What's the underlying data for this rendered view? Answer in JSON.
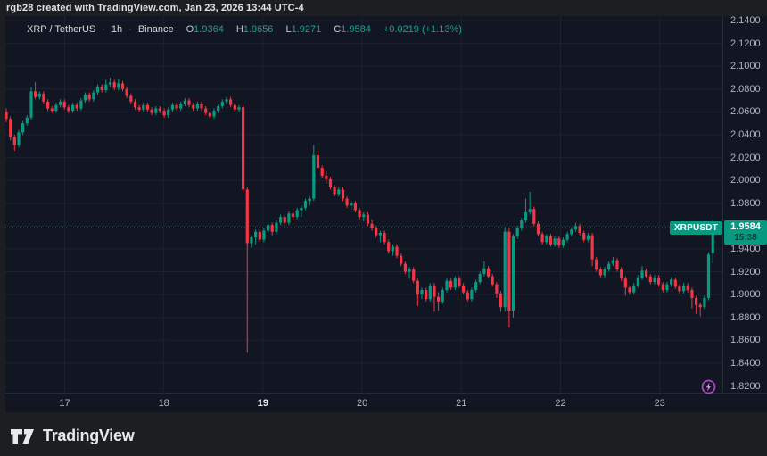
{
  "attribution": "rgb28 created with TradingView.com, Jan 23, 2026 13:44 UTC-4",
  "legend": {
    "symbol": "XRP / TetherUS",
    "separator": "·",
    "interval": "1h",
    "exchange": "Binance",
    "open_label": "O",
    "open": "1.9364",
    "high_label": "H",
    "high": "1.9656",
    "low_label": "L",
    "low": "1.9271",
    "close_label": "C",
    "close": "1.9584",
    "change": "+0.0219 (+1.13%)"
  },
  "price_label": {
    "symbol": "XRPUSDT",
    "price": "1.9584",
    "countdown": "15:38"
  },
  "logo": {
    "text": "TradingView"
  },
  "colors": {
    "up": "#089981",
    "down": "#f23645",
    "price_line": "#089981",
    "badge_bg": "#089981",
    "grid": "#1d2230",
    "panel_bg": "#121623",
    "outer_bg": "#1d1e21",
    "axis_text": "#b2b5be",
    "flash": "#ab47bc"
  },
  "chart_data": {
    "type": "candlestick",
    "title": "XRP / TetherUS",
    "exchange": "Binance",
    "interval": "1h",
    "current_price": 1.9584,
    "change_abs": 0.0219,
    "change_pct": 1.13,
    "price_axis": {
      "min": 1.82,
      "max": 2.14,
      "tick_step": 0.02,
      "labels": [
        "2.1400",
        "2.1200",
        "2.1000",
        "2.0800",
        "2.0600",
        "2.0400",
        "2.0200",
        "2.0000",
        "1.9800",
        "1.9400",
        "1.9200",
        "1.9000",
        "1.8800",
        "1.8600",
        "1.8400",
        "1.8200"
      ]
    },
    "time_axis": {
      "labels": [
        {
          "text": "17",
          "bold": false
        },
        {
          "text": "18",
          "bold": false
        },
        {
          "text": "19",
          "bold": true
        },
        {
          "text": "20",
          "bold": false
        },
        {
          "text": "21",
          "bold": false
        },
        {
          "text": "22",
          "bold": false
        },
        {
          "text": "23",
          "bold": false
        }
      ]
    },
    "candles": [
      [
        2.06,
        2.063,
        2.051,
        2.054
      ],
      [
        2.054,
        2.056,
        2.035,
        2.038
      ],
      [
        2.038,
        2.04,
        2.026,
        2.031
      ],
      [
        2.031,
        2.044,
        2.029,
        2.042
      ],
      [
        2.042,
        2.052,
        2.04,
        2.05
      ],
      [
        2.05,
        2.057,
        2.048,
        2.055
      ],
      [
        2.055,
        2.082,
        2.053,
        2.078
      ],
      [
        2.078,
        2.086,
        2.071,
        2.073
      ],
      [
        2.073,
        2.078,
        2.071,
        2.076
      ],
      [
        2.076,
        2.078,
        2.067,
        2.069
      ],
      [
        2.069,
        2.071,
        2.061,
        2.063
      ],
      [
        2.063,
        2.065,
        2.059,
        2.061
      ],
      [
        2.061,
        2.068,
        2.059,
        2.066
      ],
      [
        2.066,
        2.071,
        2.064,
        2.069
      ],
      [
        2.069,
        2.071,
        2.062,
        2.064
      ],
      [
        2.064,
        2.066,
        2.059,
        2.061
      ],
      [
        2.061,
        2.068,
        2.059,
        2.066
      ],
      [
        2.066,
        2.068,
        2.061,
        2.063
      ],
      [
        2.063,
        2.072,
        2.061,
        2.07
      ],
      [
        2.07,
        2.077,
        2.068,
        2.075
      ],
      [
        2.075,
        2.077,
        2.069,
        2.071
      ],
      [
        2.071,
        2.079,
        2.069,
        2.077
      ],
      [
        2.077,
        2.084,
        2.075,
        2.082
      ],
      [
        2.082,
        2.084,
        2.077,
        2.079
      ],
      [
        2.079,
        2.088,
        2.077,
        2.084
      ],
      [
        2.084,
        2.09,
        2.082,
        2.086
      ],
      [
        2.086,
        2.088,
        2.079,
        2.081
      ],
      [
        2.081,
        2.089,
        2.079,
        2.085
      ],
      [
        2.085,
        2.087,
        2.078,
        2.08
      ],
      [
        2.08,
        2.082,
        2.072,
        2.074
      ],
      [
        2.074,
        2.076,
        2.067,
        2.069
      ],
      [
        2.069,
        2.071,
        2.062,
        2.064
      ],
      [
        2.064,
        2.066,
        2.06,
        2.062
      ],
      [
        2.062,
        2.068,
        2.06,
        2.066
      ],
      [
        2.066,
        2.068,
        2.06,
        2.062
      ],
      [
        2.062,
        2.064,
        2.057,
        2.059
      ],
      [
        2.059,
        2.065,
        2.057,
        2.063
      ],
      [
        2.063,
        2.065,
        2.059,
        2.061
      ],
      [
        2.061,
        2.063,
        2.055,
        2.057
      ],
      [
        2.057,
        2.064,
        2.055,
        2.062
      ],
      [
        2.062,
        2.068,
        2.06,
        2.066
      ],
      [
        2.066,
        2.068,
        2.061,
        2.063
      ],
      [
        2.063,
        2.069,
        2.061,
        2.067
      ],
      [
        2.067,
        2.072,
        2.065,
        2.07
      ],
      [
        2.07,
        2.072,
        2.064,
        2.066
      ],
      [
        2.066,
        2.068,
        2.061,
        2.063
      ],
      [
        2.063,
        2.069,
        2.061,
        2.067
      ],
      [
        2.067,
        2.069,
        2.061,
        2.063
      ],
      [
        2.063,
        2.065,
        2.057,
        2.059
      ],
      [
        2.059,
        2.061,
        2.054,
        2.056
      ],
      [
        2.056,
        2.063,
        2.054,
        2.061
      ],
      [
        2.061,
        2.067,
        2.059,
        2.065
      ],
      [
        2.065,
        2.071,
        2.063,
        2.069
      ],
      [
        2.069,
        2.073,
        2.067,
        2.071
      ],
      [
        2.071,
        2.073,
        2.064,
        2.066
      ],
      [
        2.066,
        2.068,
        2.06,
        2.062
      ],
      [
        2.062,
        2.066,
        2.06,
        2.064
      ],
      [
        2.064,
        2.066,
        1.99,
        1.992
      ],
      [
        1.992,
        1.994,
        1.849,
        1.945
      ],
      [
        1.945,
        1.952,
        1.941,
        1.95
      ],
      [
        1.95,
        1.957,
        1.944,
        1.955
      ],
      [
        1.955,
        1.957,
        1.946,
        1.948
      ],
      [
        1.948,
        1.958,
        1.946,
        1.956
      ],
      [
        1.956,
        1.963,
        1.954,
        1.961
      ],
      [
        1.961,
        1.963,
        1.952,
        1.955
      ],
      [
        1.955,
        1.965,
        1.953,
        1.963
      ],
      [
        1.963,
        1.97,
        1.961,
        1.968
      ],
      [
        1.968,
        1.97,
        1.96,
        1.963
      ],
      [
        1.963,
        1.973,
        1.961,
        1.971
      ],
      [
        1.971,
        1.973,
        1.965,
        1.968
      ],
      [
        1.968,
        1.976,
        1.966,
        1.974
      ],
      [
        1.974,
        1.978,
        1.968,
        1.976
      ],
      [
        1.976,
        1.984,
        1.974,
        1.982
      ],
      [
        1.982,
        1.986,
        1.978,
        1.984
      ],
      [
        1.984,
        2.031,
        1.982,
        2.022
      ],
      [
        2.022,
        2.026,
        2.009,
        2.011
      ],
      [
        2.011,
        2.013,
        2.002,
        2.004
      ],
      [
        2.004,
        2.008,
        1.997,
        2.001
      ],
      [
        2.001,
        2.003,
        1.992,
        1.994
      ],
      [
        1.994,
        1.996,
        1.986,
        1.988
      ],
      [
        1.988,
        1.994,
        1.986,
        1.992
      ],
      [
        1.992,
        1.994,
        1.982,
        1.984
      ],
      [
        1.984,
        1.986,
        1.976,
        1.978
      ],
      [
        1.978,
        1.982,
        1.974,
        1.98
      ],
      [
        1.98,
        1.982,
        1.972,
        1.974
      ],
      [
        1.974,
        1.976,
        1.966,
        1.968
      ],
      [
        1.968,
        1.972,
        1.964,
        1.97
      ],
      [
        1.97,
        1.972,
        1.96,
        1.962
      ],
      [
        1.962,
        1.966,
        1.956,
        1.958
      ],
      [
        1.958,
        1.96,
        1.95,
        1.952
      ],
      [
        1.952,
        1.956,
        1.946,
        1.954
      ],
      [
        1.954,
        1.956,
        1.944,
        1.946
      ],
      [
        1.946,
        1.948,
        1.936,
        1.938
      ],
      [
        1.938,
        1.944,
        1.934,
        1.942
      ],
      [
        1.942,
        1.944,
        1.932,
        1.934
      ],
      [
        1.934,
        1.936,
        1.925,
        1.927
      ],
      [
        1.927,
        1.929,
        1.918,
        1.92
      ],
      [
        1.92,
        1.924,
        1.914,
        1.922
      ],
      [
        1.922,
        1.924,
        1.91,
        1.912
      ],
      [
        1.912,
        1.914,
        1.89,
        1.9
      ],
      [
        1.9,
        1.906,
        1.896,
        1.904
      ],
      [
        1.904,
        1.906,
        1.894,
        1.896
      ],
      [
        1.896,
        1.91,
        1.894,
        1.908
      ],
      [
        1.908,
        1.91,
        1.885,
        1.898
      ],
      [
        1.898,
        1.902,
        1.886,
        1.894
      ],
      [
        1.894,
        1.906,
        1.892,
        1.904
      ],
      [
        1.904,
        1.914,
        1.902,
        1.912
      ],
      [
        1.912,
        1.914,
        1.904,
        1.906
      ],
      [
        1.906,
        1.916,
        1.904,
        1.914
      ],
      [
        1.914,
        1.916,
        1.906,
        1.908
      ],
      [
        1.908,
        1.91,
        1.9,
        1.902
      ],
      [
        1.902,
        1.904,
        1.894,
        1.896
      ],
      [
        1.896,
        1.906,
        1.894,
        1.904
      ],
      [
        1.904,
        1.913,
        1.902,
        1.911
      ],
      [
        1.911,
        1.92,
        1.909,
        1.918
      ],
      [
        1.918,
        1.929,
        1.916,
        1.923
      ],
      [
        1.923,
        1.925,
        1.914,
        1.916
      ],
      [
        1.916,
        1.918,
        1.907,
        1.909
      ],
      [
        1.909,
        1.911,
        1.897,
        1.901
      ],
      [
        1.901,
        1.903,
        1.885,
        1.889
      ],
      [
        1.889,
        1.959,
        1.885,
        1.955
      ],
      [
        1.955,
        1.958,
        1.871,
        1.886
      ],
      [
        1.886,
        1.953,
        1.88,
        1.951
      ],
      [
        1.951,
        1.96,
        1.949,
        1.958
      ],
      [
        1.958,
        1.967,
        1.956,
        1.965
      ],
      [
        1.965,
        1.984,
        1.963,
        1.972
      ],
      [
        1.972,
        1.99,
        1.97,
        1.975
      ],
      [
        1.975,
        1.977,
        1.96,
        1.962
      ],
      [
        1.962,
        1.964,
        1.951,
        1.953
      ],
      [
        1.953,
        1.955,
        1.944,
        1.946
      ],
      [
        1.946,
        1.953,
        1.944,
        1.951
      ],
      [
        1.951,
        1.953,
        1.942,
        1.944
      ],
      [
        1.944,
        1.951,
        1.942,
        1.949
      ],
      [
        1.949,
        1.951,
        1.941,
        1.943
      ],
      [
        1.943,
        1.95,
        1.941,
        1.948
      ],
      [
        1.948,
        1.955,
        1.946,
        1.953
      ],
      [
        1.953,
        1.959,
        1.951,
        1.957
      ],
      [
        1.957,
        1.963,
        1.955,
        1.96
      ],
      [
        1.96,
        1.962,
        1.952,
        1.954
      ],
      [
        1.954,
        1.956,
        1.946,
        1.948
      ],
      [
        1.948,
        1.954,
        1.946,
        1.952
      ],
      [
        1.952,
        1.954,
        1.925,
        1.931
      ],
      [
        1.931,
        1.933,
        1.92,
        1.922
      ],
      [
        1.922,
        1.924,
        1.915,
        1.917
      ],
      [
        1.917,
        1.924,
        1.915,
        1.922
      ],
      [
        1.922,
        1.929,
        1.92,
        1.927
      ],
      [
        1.927,
        1.933,
        1.925,
        1.93
      ],
      [
        1.93,
        1.932,
        1.92,
        1.922
      ],
      [
        1.922,
        1.924,
        1.912,
        1.914
      ],
      [
        1.914,
        1.916,
        1.899,
        1.906
      ],
      [
        1.906,
        1.908,
        1.9,
        1.902
      ],
      [
        1.902,
        1.91,
        1.9,
        1.908
      ],
      [
        1.908,
        1.917,
        1.906,
        1.915
      ],
      [
        1.915,
        1.925,
        1.913,
        1.921
      ],
      [
        1.921,
        1.923,
        1.914,
        1.916
      ],
      [
        1.916,
        1.918,
        1.909,
        1.911
      ],
      [
        1.911,
        1.917,
        1.909,
        1.915
      ],
      [
        1.915,
        1.917,
        1.907,
        1.909
      ],
      [
        1.909,
        1.911,
        1.902,
        1.904
      ],
      [
        1.904,
        1.911,
        1.902,
        1.909
      ],
      [
        1.909,
        1.915,
        1.907,
        1.913
      ],
      [
        1.913,
        1.915,
        1.905,
        1.907
      ],
      [
        1.907,
        1.909,
        1.901,
        1.903
      ],
      [
        1.903,
        1.91,
        1.901,
        1.908
      ],
      [
        1.908,
        1.91,
        1.902,
        1.904
      ],
      [
        1.904,
        1.906,
        1.888,
        1.897
      ],
      [
        1.897,
        1.899,
        1.883,
        1.891
      ],
      [
        1.891,
        1.893,
        1.881,
        1.889
      ],
      [
        1.889,
        1.899,
        1.887,
        1.897
      ],
      [
        1.897,
        1.937,
        1.895,
        1.935
      ],
      [
        1.9364,
        1.9656,
        1.9271,
        1.9584
      ]
    ]
  }
}
